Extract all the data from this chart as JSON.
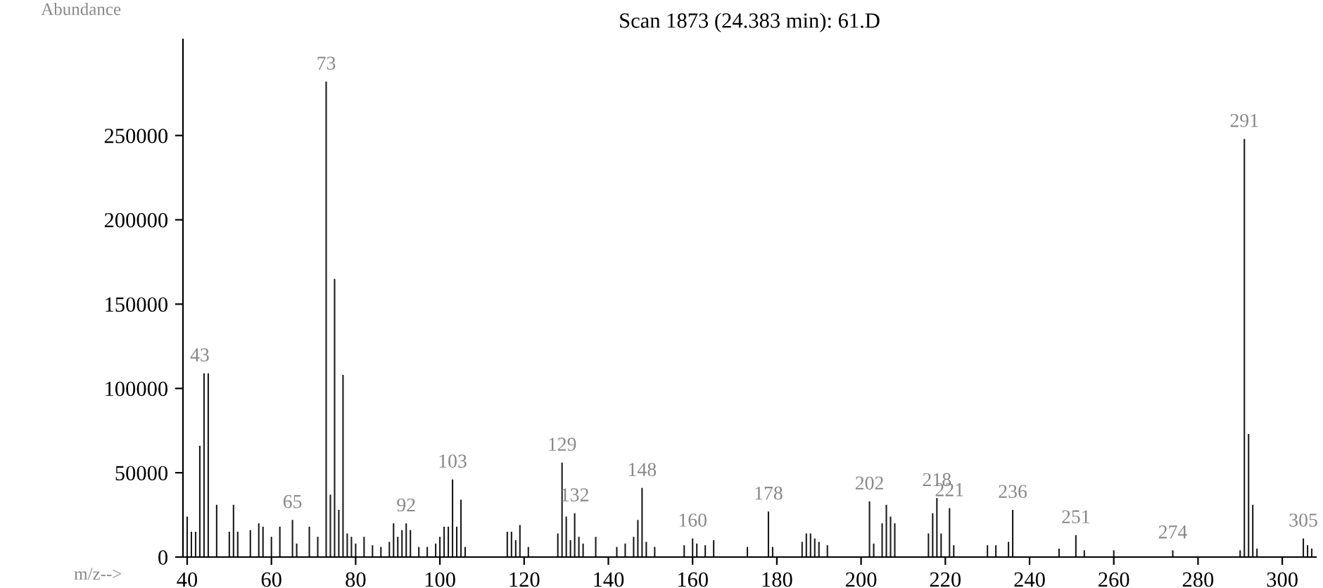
{
  "chart_data": {
    "type": "bar",
    "title": "Scan 1873 (24.383 min): 61.D",
    "xlabel": "m/z-->",
    "ylabel": "Abundance",
    "x": [
      40,
      41,
      42,
      43,
      44,
      45,
      47,
      50,
      51,
      52,
      55,
      57,
      58,
      60,
      62,
      65,
      66,
      69,
      71,
      73,
      74,
      75,
      76,
      77,
      78,
      79,
      80,
      82,
      84,
      86,
      88,
      89,
      90,
      91,
      92,
      93,
      95,
      97,
      99,
      100,
      101,
      102,
      103,
      104,
      105,
      106,
      116,
      117,
      118,
      119,
      121,
      128,
      129,
      130,
      131,
      132,
      133,
      134,
      137,
      142,
      144,
      146,
      147,
      148,
      149,
      151,
      158,
      160,
      161,
      163,
      165,
      173,
      178,
      179,
      186,
      187,
      188,
      189,
      190,
      192,
      202,
      203,
      205,
      206,
      207,
      208,
      216,
      217,
      218,
      219,
      221,
      222,
      230,
      232,
      235,
      236,
      247,
      251,
      253,
      260,
      274,
      290,
      291,
      292,
      293,
      294,
      305,
      306,
      307
    ],
    "series": [
      {
        "color": "#1a1a1a",
        "values": [
          24000,
          15000,
          15000,
          66000,
          109000,
          109000,
          31000,
          15000,
          31000,
          15000,
          16000,
          20000,
          18000,
          12000,
          18000,
          22000,
          8000,
          18000,
          12000,
          282000,
          37000,
          165000,
          28000,
          108000,
          14000,
          12000,
          8000,
          12000,
          7000,
          6000,
          9000,
          20000,
          12000,
          16000,
          20000,
          16000,
          6000,
          6000,
          8000,
          12000,
          18000,
          18000,
          46000,
          18000,
          34000,
          6000,
          15000,
          15000,
          10000,
          19000,
          6000,
          14000,
          56000,
          24000,
          10000,
          26000,
          12000,
          8000,
          12000,
          6000,
          8000,
          12000,
          22000,
          41000,
          9000,
          6000,
          7000,
          11000,
          8000,
          7000,
          10000,
          6000,
          27000,
          6000,
          9000,
          14000,
          14000,
          11000,
          9000,
          7000,
          33000,
          8000,
          20000,
          31000,
          24000,
          20000,
          14000,
          26000,
          35000,
          14000,
          29000,
          7000,
          7000,
          7000,
          9000,
          28000,
          5000,
          13000,
          4000,
          4000,
          4000,
          4000,
          248000,
          73000,
          31000,
          5000,
          11000,
          7000,
          5000
        ]
      }
    ],
    "xlim": [
      39,
      308
    ],
    "ylim": [
      0,
      307000
    ],
    "xticks": [
      40,
      60,
      80,
      100,
      120,
      140,
      160,
      180,
      200,
      220,
      240,
      260,
      280,
      300
    ],
    "yticks": [
      0,
      50000,
      100000,
      150000,
      200000,
      250000
    ],
    "grid": false,
    "annotations": [
      {
        "text": "43",
        "x": 43,
        "y": 109000
      },
      {
        "text": "73",
        "x": 73,
        "y": 282000
      },
      {
        "text": "65",
        "x": 65,
        "y": 22000
      },
      {
        "text": "92",
        "x": 92,
        "y": 20000
      },
      {
        "text": "103",
        "x": 103,
        "y": 46000
      },
      {
        "text": "129",
        "x": 129,
        "y": 56000
      },
      {
        "text": "132",
        "x": 132,
        "y": 26000
      },
      {
        "text": "148",
        "x": 148,
        "y": 41000
      },
      {
        "text": "160",
        "x": 160,
        "y": 11000
      },
      {
        "text": "178",
        "x": 178,
        "y": 27000
      },
      {
        "text": "202",
        "x": 202,
        "y": 33000
      },
      {
        "text": "218",
        "x": 218,
        "y": 35000
      },
      {
        "text": "221",
        "x": 221,
        "y": 29000
      },
      {
        "text": "236",
        "x": 236,
        "y": 28000
      },
      {
        "text": "251",
        "x": 251,
        "y": 13000
      },
      {
        "text": "274",
        "x": 274,
        "y": 4000
      },
      {
        "text": "291",
        "x": 291,
        "y": 248000
      },
      {
        "text": "305",
        "x": 305,
        "y": 11000
      }
    ]
  }
}
